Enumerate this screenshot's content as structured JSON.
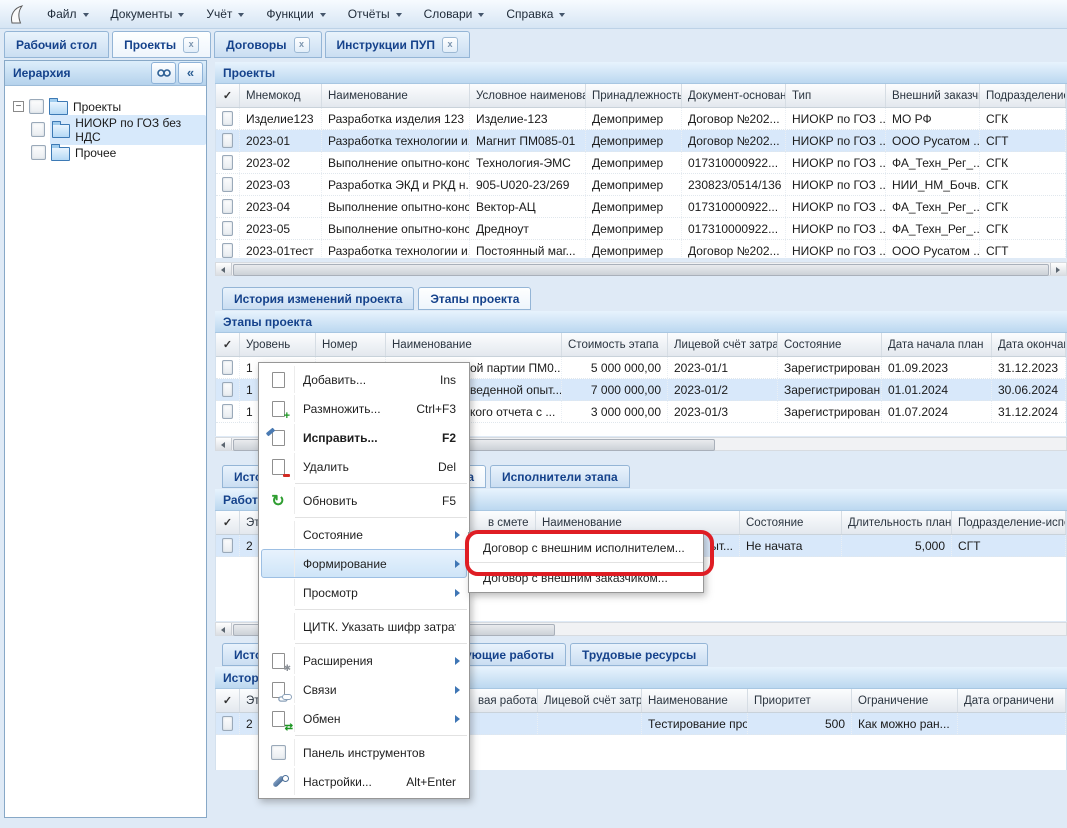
{
  "colors": {
    "accent": "#15428b",
    "selection": "#d8e8fa",
    "annotation_red": "#df1d24"
  },
  "menubar": {
    "items": [
      "Файл",
      "Документы",
      "Учёт",
      "Функции",
      "Отчёты",
      "Словари",
      "Справка"
    ]
  },
  "toptabs": {
    "items": [
      {
        "label": "Рабочий стол",
        "active": false,
        "closable": false
      },
      {
        "label": "Проекты",
        "active": true,
        "closable": true
      },
      {
        "label": "Договоры",
        "active": false,
        "closable": true
      },
      {
        "label": "Инструкции ПУП",
        "active": false,
        "closable": true
      }
    ]
  },
  "hierarchy": {
    "title": "Иерархия",
    "collapse_glyph": "«",
    "root": "Проекты",
    "children": [
      {
        "label": "НИОКР по ГОЗ без НДС",
        "selected": true
      },
      {
        "label": "Прочее",
        "selected": false
      }
    ]
  },
  "projects": {
    "caption": "Проекты",
    "check": "✓",
    "headers": [
      "Мнемокод",
      "Наименование",
      "Условное наименова",
      "Принадлежность",
      "Документ-основан",
      "Тип",
      "Внешний заказчик",
      "Подразделение"
    ],
    "rows": [
      [
        "Изделие123",
        "Разработка изделия 123",
        "Изделие-123",
        "Демопример",
        "Договор №202...",
        "НИОКР по ГОЗ ...",
        "МО РФ",
        "СГК"
      ],
      [
        "2023-01",
        "Разработка технологии и...",
        "Магнит ПМ085-01",
        "Демопример",
        "Договор №202...",
        "НИОКР по ГОЗ ...",
        "ООО Русатом ...",
        "СГТ"
      ],
      [
        "2023-02",
        "Выполнение опытно-конс...",
        "Технология-ЭМС",
        "Демопример",
        "017310000922...",
        "НИОКР по ГОЗ ...",
        "ФА_Техн_Рег_...",
        "СГК"
      ],
      [
        "2023-03",
        "Разработка ЭКД и РКД н...",
        "905-U020-23/269",
        "Демопример",
        "230823/0514/136",
        "НИОКР по ГОЗ ...",
        "НИИ_НМ_Бочв...",
        "СГК"
      ],
      [
        "2023-04",
        "Выполнение опытно-конс...",
        "Вектор-АЦ",
        "Демопример",
        "017310000922...",
        "НИОКР по ГОЗ ...",
        "ФА_Техн_Рег_...",
        "СГК"
      ],
      [
        "2023-05",
        "Выполнение опытно-конс...",
        "Дредноут",
        "Демопример",
        "017310000922...",
        "НИОКР по ГОЗ ...",
        "ФА_Техн_Рег_...",
        "СГК"
      ],
      [
        "2023-01тест",
        "Разработка технологии и...",
        "Постоянный маг...",
        "Демопример",
        "Договор №202...",
        "НИОКР по ГОЗ ...",
        "ООО Русатом ...",
        "СГТ"
      ]
    ],
    "selected": 1
  },
  "history_tabs": {
    "items": [
      {
        "label": "История изменений проекта",
        "active": false
      },
      {
        "label": "Этапы проекта",
        "active": true
      }
    ]
  },
  "stages": {
    "caption": "Этапы проекта",
    "check": "✓",
    "headers": [
      "Уровень",
      "Номер",
      "Наименование",
      "Стоимость этапа",
      "Лицевой счёт затрат.",
      "Состояние",
      "Дата начала план",
      "Дата окончани"
    ],
    "rows": [
      [
        "1",
        "",
        "ой партии ПМ0...",
        "5 000 000,00",
        "2023-01/1",
        "Зарегистрирован",
        "01.09.2023",
        "31.12.2023"
      ],
      [
        "1",
        "",
        "веденной опыт...",
        "7 000 000,00",
        "2023-01/2",
        "Зарегистрирован",
        "01.01.2024",
        "30.06.2024"
      ],
      [
        "1",
        "",
        "кого отчета с ...",
        "3 000 000,00",
        "2023-01/3",
        "Зарегистрирован",
        "01.07.2024",
        "31.12.2024"
      ]
    ],
    "selected": 1
  },
  "work_tabs": {
    "items": [
      {
        "label": "Истор",
        "active": false
      },
      {
        "label": "а",
        "active": true
      },
      {
        "label": "Исполнители этапа",
        "active": false
      }
    ]
  },
  "works": {
    "caption": "Работы",
    "check": "✓",
    "headers": [
      "Этап",
      "",
      "в смете",
      "Наименование",
      "Состояние",
      "Длительность план ▼",
      "Подразделение-испо"
    ],
    "rows": [
      [
        "2",
        "",
        "",
        "ыт...",
        "Не начата",
        "5,000",
        "СГТ"
      ]
    ],
    "selected": 0
  },
  "resource_tabs": {
    "items": [
      {
        "label": "Истор",
        "active": false
      },
      {
        "label": "вующие работы",
        "active": false
      },
      {
        "label": "Трудовые ресурсы",
        "active": false
      }
    ]
  },
  "resources": {
    "caption": "Истори",
    "check": "✓",
    "headers": [
      "Этап",
      "",
      "вая работа",
      "Лицевой счёт затр",
      "Наименование",
      "Приоритет",
      "Ограничение",
      "Дата ограничени"
    ],
    "rows": [
      [
        "2",
        "",
        "",
        "",
        "Тестирование произве...",
        "500",
        "Как можно ран...",
        ""
      ]
    ],
    "selected": 0
  },
  "context_menu": {
    "items": [
      {
        "icon": "page",
        "label": "Добавить...",
        "shortcut": "Ins"
      },
      {
        "icon": "page-add",
        "label": "Размножить...",
        "shortcut": "Ctrl+F3"
      },
      {
        "icon": "page-edit",
        "label": "Исправить...",
        "shortcut": "F2",
        "bold": true
      },
      {
        "icon": "page-del",
        "label": "Удалить",
        "shortcut": "Del"
      },
      {
        "sep": true
      },
      {
        "icon": "refresh",
        "label": "Обновить",
        "shortcut": "F5"
      },
      {
        "sep": true
      },
      {
        "icon": "none",
        "label": "Состояние",
        "arrow": true
      },
      {
        "icon": "none",
        "label": "Формирование",
        "arrow": true,
        "hover": true
      },
      {
        "icon": "none",
        "label": "Просмотр",
        "arrow": true
      },
      {
        "sep": true
      },
      {
        "icon": "none",
        "label": "ЦИТК. Указать шифр затрат..."
      },
      {
        "sep": true
      },
      {
        "icon": "ext",
        "label": "Расширения",
        "arrow": true
      },
      {
        "icon": "link",
        "label": "Связи",
        "arrow": true
      },
      {
        "icon": "exchange",
        "label": "Обмен",
        "arrow": true
      },
      {
        "sep": true
      },
      {
        "icon": "checkbox",
        "label": "Панель инструментов"
      },
      {
        "icon": "wrench",
        "label": "Настройки...",
        "shortcut": "Alt+Enter"
      }
    ]
  },
  "submenu": {
    "items": [
      {
        "label": "Договор с внешним исполнителем...",
        "annotated": true
      },
      {
        "label": "Договор с внешним заказчиком...",
        "annotated": false
      }
    ]
  }
}
